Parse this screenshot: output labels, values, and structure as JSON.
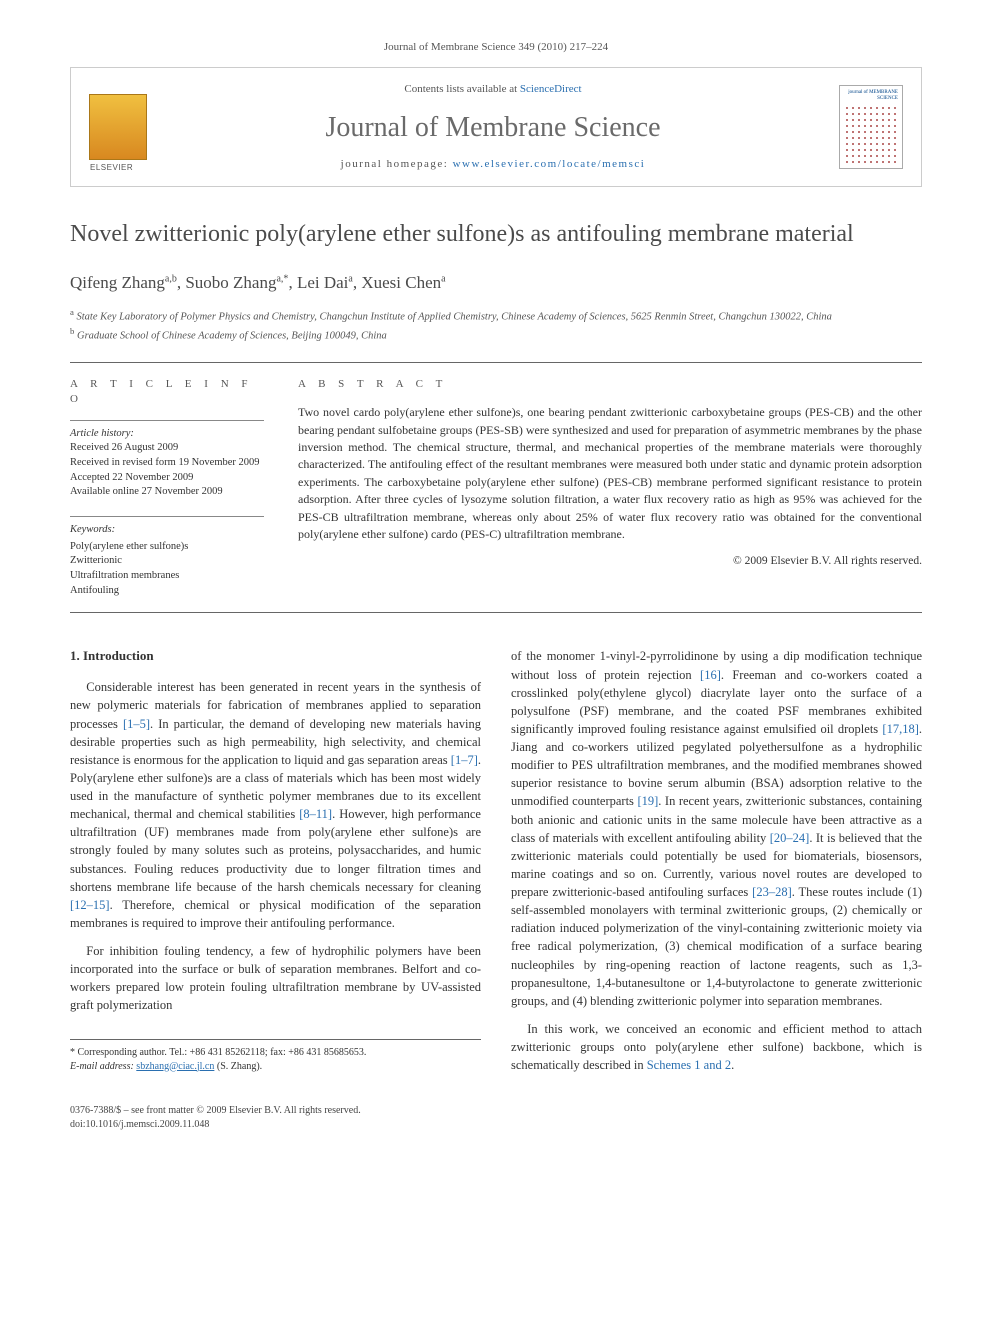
{
  "meta": {
    "citation_line": "Journal of Membrane Science 349 (2010) 217–224",
    "contents_prefix": "Contents lists available at ",
    "contents_link": "ScienceDirect",
    "journal_name": "Journal of Membrane Science",
    "homepage_label": "journal homepage: ",
    "homepage_url": "www.elsevier.com/locate/memsci",
    "cover_label": "journal of MEMBRANE SCIENCE"
  },
  "title": "Novel zwitterionic poly(arylene ether sulfone)s as antifouling membrane material",
  "authors_html": "Qifeng Zhang",
  "authors": [
    {
      "name": "Qifeng Zhang",
      "aff": "a,b"
    },
    {
      "name": "Suobo Zhang",
      "aff": "a,*"
    },
    {
      "name": "Lei Dai",
      "aff": "a"
    },
    {
      "name": "Xuesi Chen",
      "aff": "a"
    }
  ],
  "affiliations": {
    "a": "State Key Laboratory of Polymer Physics and Chemistry, Changchun Institute of Applied Chemistry, Chinese Academy of Sciences, 5625 Renmin Street, Changchun 130022, China",
    "b": "Graduate School of Chinese Academy of Sciences, Beijing 100049, China"
  },
  "info": {
    "heading": "a r t i c l e   i n f o",
    "history_label": "Article history:",
    "history": [
      "Received 26 August 2009",
      "Received in revised form 19 November 2009",
      "Accepted 22 November 2009",
      "Available online 27 November 2009"
    ],
    "keywords_label": "Keywords:",
    "keywords": [
      "Poly(arylene ether sulfone)s",
      "Zwitterionic",
      "Ultrafiltration membranes",
      "Antifouling"
    ]
  },
  "abstract": {
    "heading": "a b s t r a c t",
    "text": "Two novel cardo poly(arylene ether sulfone)s, one bearing pendant zwitterionic carboxybetaine groups (PES-CB) and the other bearing pendant sulfobetaine groups (PES-SB) were synthesized and used for preparation of asymmetric membranes by the phase inversion method. The chemical structure, thermal, and mechanical properties of the membrane materials were thoroughly characterized. The antifouling effect of the resultant membranes were measured both under static and dynamic protein adsorption experiments. The carboxybetaine poly(arylene ether sulfone) (PES-CB) membrane performed significant resistance to protein adsorption. After three cycles of lysozyme solution filtration, a water flux recovery ratio as high as 95% was achieved for the PES-CB ultrafiltration membrane, whereas only about 25% of water flux recovery ratio was obtained for the conventional poly(arylene ether sulfone) cardo (PES-C) ultrafiltration membrane.",
    "copyright": "© 2009 Elsevier B.V. All rights reserved."
  },
  "body": {
    "section_number": "1.",
    "section_title": "Introduction",
    "col1_p1": "Considerable interest has been generated in recent years in the synthesis of new polymeric materials for fabrication of membranes applied to separation processes [1–5]. In particular, the demand of developing new materials having desirable properties such as high permeability, high selectivity, and chemical resistance is enormous for the application to liquid and gas separation areas [1–7]. Poly(arylene ether sulfone)s are a class of materials which has been most widely used in the manufacture of synthetic polymer membranes due to its excellent mechanical, thermal and chemical stabilities [8–11]. However, high performance ultrafiltration (UF) membranes made from poly(arylene ether sulfone)s are strongly fouled by many solutes such as proteins, polysaccharides, and humic substances. Fouling reduces productivity due to longer filtration times and shortens membrane life because of the harsh chemicals necessary for cleaning [12–15]. Therefore, chemical or physical modification of the separation membranes is required to improve their antifouling performance.",
    "col1_p2": "For inhibition fouling tendency, a few of hydrophilic polymers have been incorporated into the surface or bulk of separation membranes. Belfort and co-workers prepared low protein fouling ultrafiltration membrane by UV-assisted graft polymerization",
    "col2_p1": "of the monomer 1-vinyl-2-pyrrolidinone by using a dip modification technique without loss of protein rejection [16]. Freeman and co-workers coated a crosslinked poly(ethylene glycol) diacrylate layer onto the surface of a polysulfone (PSF) membrane, and the coated PSF membranes exhibited significantly improved fouling resistance against emulsified oil droplets [17,18]. Jiang and co-workers utilized pegylated polyethersulfone as a hydrophilic modifier to PES ultrafiltration membranes, and the modified membranes showed superior resistance to bovine serum albumin (BSA) adsorption relative to the unmodified counterparts [19]. In recent years, zwitterionic substances, containing both anionic and cationic units in the same molecule have been attractive as a class of materials with excellent antifouling ability [20–24]. It is believed that the zwitterionic materials could potentially be used for biomaterials, biosensors, marine coatings and so on. Currently, various novel routes are developed to prepare zwitterionic-based antifouling surfaces [23–28]. These routes include (1) self-assembled monolayers with terminal zwitterionic groups, (2) chemically or radiation induced polymerization of the vinyl-containing zwitterionic moiety via free radical polymerization, (3) chemical modification of a surface bearing nucleophiles by ring-opening reaction of lactone reagents, such as 1,3-propanesultone, 1,4-butanesultone or 1,4-butyrolactone to generate zwitterionic groups, and (4) blending zwitterionic polymer into separation membranes.",
    "col2_p2": "In this work, we conceived an economic and efficient method to attach zwitterionic groups onto poly(arylene ether sulfone) backbone, which is schematically described in Schemes 1 and 2."
  },
  "corr": {
    "star": "*",
    "line1": "Corresponding author. Tel.: +86 431 85262118; fax: +86 431 85685653.",
    "email_label": "E-mail address:",
    "email": "sbzhang@ciac.jl.cn",
    "email_suffix": "(S. Zhang)."
  },
  "footer": {
    "line1": "0376-7388/$ – see front matter © 2009 Elsevier B.V. All rights reserved.",
    "doi": "doi:10.1016/j.memsci.2009.11.048"
  },
  "colors": {
    "link": "#2a6fb0",
    "text": "#333333",
    "muted": "#555555",
    "rule": "#666666"
  }
}
